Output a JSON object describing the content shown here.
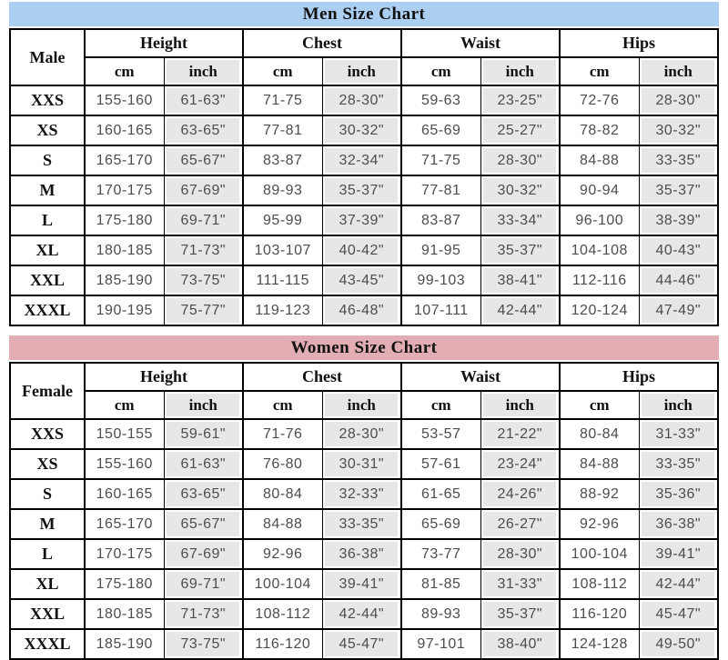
{
  "colors": {
    "men_header_bg": "#accef1",
    "women_header_bg": "#e3aeb3",
    "shaded_cell_bg": "#e7e7e7",
    "grid_line": "#000000",
    "data_text": "#4d4d4d",
    "header_text": "#111111"
  },
  "charts": [
    {
      "id": "men",
      "title": "Men Size Chart",
      "header_bg": "#accef1",
      "row_label_header": "Male",
      "column_groups": [
        "Height",
        "Chest",
        "Waist",
        "Hips"
      ],
      "unit_headers": [
        "cm",
        "inch"
      ],
      "rows": [
        {
          "size": "XXS",
          "cells": [
            "155-160",
            "61-63\"",
            "71-75",
            "28-30\"",
            "59-63",
            "23-25\"",
            "72-76",
            "28-30\""
          ]
        },
        {
          "size": "XS",
          "cells": [
            "160-165",
            "63-65\"",
            "77-81",
            "30-32\"",
            "65-69",
            "25-27\"",
            "78-82",
            "30-32\""
          ]
        },
        {
          "size": "S",
          "cells": [
            "165-170",
            "65-67\"",
            "83-87",
            "32-34\"",
            "71-75",
            "28-30\"",
            "84-88",
            "33-35\""
          ]
        },
        {
          "size": "M",
          "cells": [
            "170-175",
            "67-69\"",
            "89-93",
            "35-37\"",
            "77-81",
            "30-32\"",
            "90-94",
            "35-37\""
          ]
        },
        {
          "size": "L",
          "cells": [
            "175-180",
            "69-71\"",
            "95-99",
            "37-39\"",
            "83-87",
            "33-34\"",
            "96-100",
            "38-39\""
          ]
        },
        {
          "size": "XL",
          "cells": [
            "180-185",
            "71-73\"",
            "103-107",
            "40-42\"",
            "91-95",
            "35-37\"",
            "104-108",
            "40-43\""
          ]
        },
        {
          "size": "XXL",
          "cells": [
            "185-190",
            "73-75\"",
            "111-115",
            "43-45\"",
            "99-103",
            "38-41\"",
            "112-116",
            "44-46\""
          ]
        },
        {
          "size": "XXXL",
          "cells": [
            "190-195",
            "75-77\"",
            "119-123",
            "46-48\"",
            "107-111",
            "42-44\"",
            "120-124",
            "47-49\""
          ]
        }
      ]
    },
    {
      "id": "women",
      "title": "Women Size Chart",
      "header_bg": "#e3aeb3",
      "row_label_header": "Female",
      "column_groups": [
        "Height",
        "Chest",
        "Waist",
        "Hips"
      ],
      "unit_headers": [
        "cm",
        "inch"
      ],
      "rows": [
        {
          "size": "XXS",
          "cells": [
            "150-155",
            "59-61\"",
            "71-76",
            "28-30\"",
            "53-57",
            "21-22\"",
            "80-84",
            "31-33\""
          ]
        },
        {
          "size": "XS",
          "cells": [
            "155-160",
            "61-63\"",
            "76-80",
            "30-31\"",
            "57-61",
            "23-24\"",
            "84-88",
            "33-35\""
          ]
        },
        {
          "size": "S",
          "cells": [
            "160-165",
            "63-65\"",
            "80-84",
            "32-33\"",
            "61-65",
            "24-26\"",
            "88-92",
            "35-36\""
          ]
        },
        {
          "size": "M",
          "cells": [
            "165-170",
            "65-67\"",
            "84-88",
            "33-35\"",
            "65-69",
            "26-27\"",
            "92-96",
            "36-38\""
          ]
        },
        {
          "size": "L",
          "cells": [
            "170-175",
            "67-69\"",
            "92-96",
            "36-38\"",
            "73-77",
            "28-30\"",
            "100-104",
            "39-41\""
          ]
        },
        {
          "size": "XL",
          "cells": [
            "175-180",
            "69-71\"",
            "100-104",
            "39-41\"",
            "81-85",
            "31-33\"",
            "108-112",
            "42-44\""
          ]
        },
        {
          "size": "XXL",
          "cells": [
            "180-185",
            "71-73\"",
            "108-112",
            "42-44\"",
            "89-93",
            "35-37\"",
            "116-120",
            "45-47\""
          ]
        },
        {
          "size": "XXXL",
          "cells": [
            "185-190",
            "73-75\"",
            "116-120",
            "45-47\"",
            "97-101",
            "38-40\"",
            "124-128",
            "49-50\""
          ]
        }
      ]
    }
  ]
}
